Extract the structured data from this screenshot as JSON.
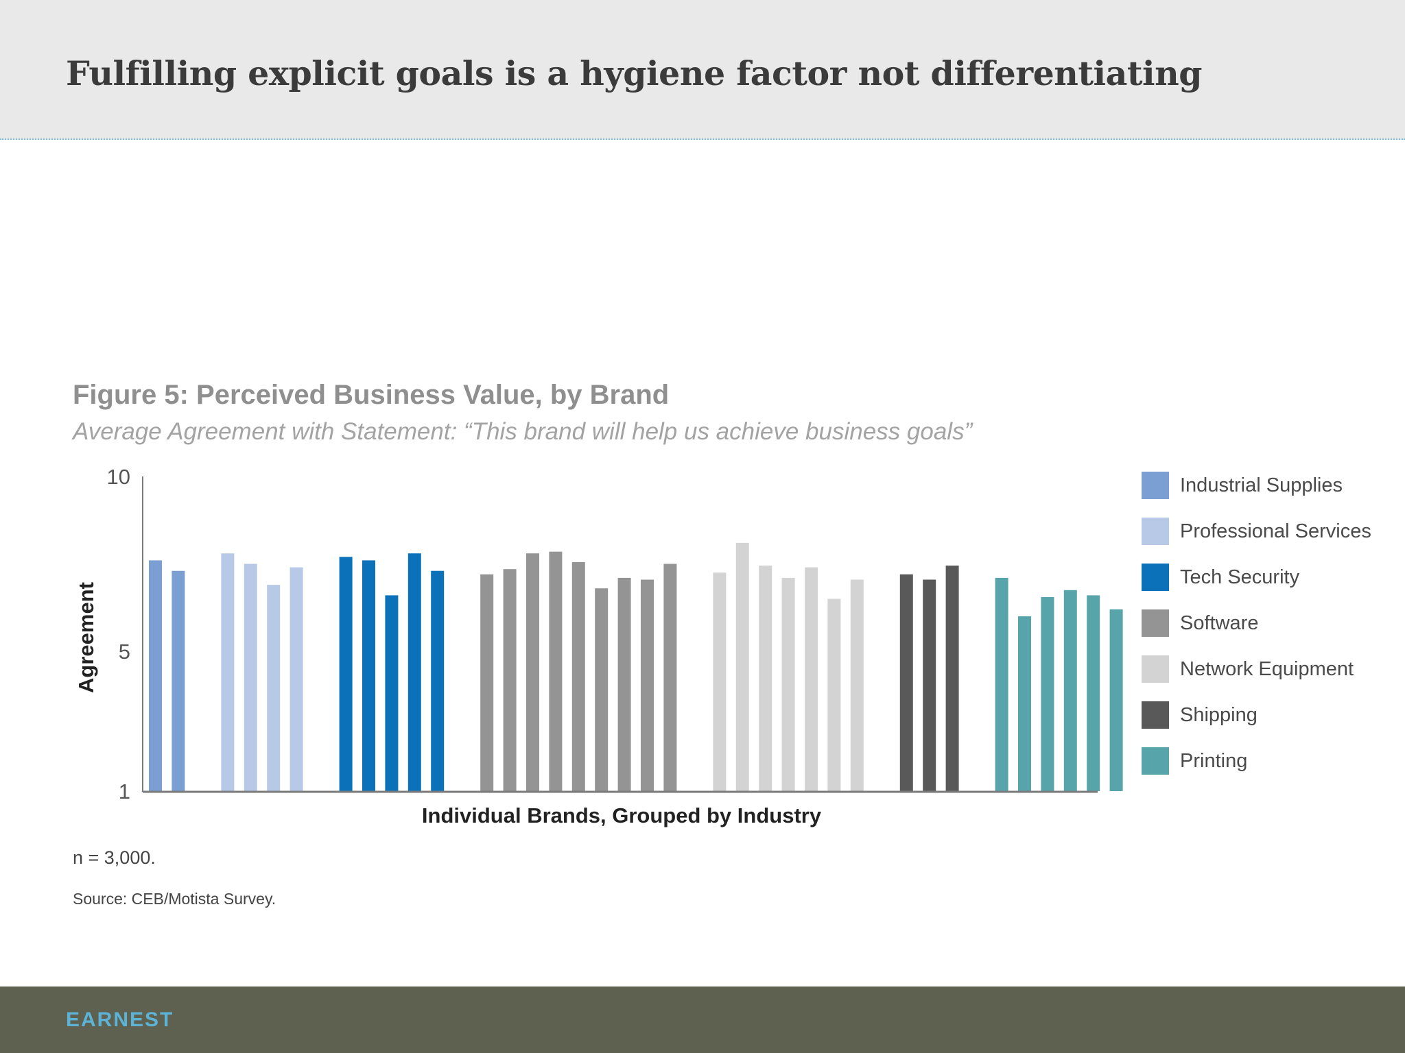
{
  "slide": {
    "title": "Fulfilling explicit goals is a hygiene factor not differentiating"
  },
  "footer": {
    "logo_text": "EARNEST"
  },
  "notes": {
    "n": "n = 3,000.",
    "source": "Source: CEB/Motista Survey."
  },
  "chart_data": {
    "type": "bar",
    "title": "Figure 5: Perceived Business Value, by Brand",
    "subtitle": "Average Agreement with Statement: “This brand will help us achieve business goals”",
    "xlabel": "Individual Brands, Grouped by Industry",
    "ylabel": "Agreement",
    "ylim": [
      1,
      10
    ],
    "yticks": [
      "10",
      "5",
      "1"
    ],
    "ytick_values": [
      10,
      5,
      1
    ],
    "grid": false,
    "legend_position": "right",
    "series": [
      {
        "name": "Industrial Supplies",
        "color": "#7b9fd2",
        "values": [
          7.6,
          7.3
        ]
      },
      {
        "name": "Professional Services",
        "color": "#b8c9e8",
        "values": [
          7.8,
          7.5,
          6.9,
          7.4
        ]
      },
      {
        "name": "Tech Security",
        "color": "#0b72b9",
        "values": [
          7.7,
          7.6,
          6.6,
          7.8,
          7.3
        ]
      },
      {
        "name": "Software",
        "color": "#949494",
        "values": [
          7.2,
          7.35,
          7.8,
          7.85,
          7.55,
          6.8,
          7.1,
          7.05,
          7.5
        ]
      },
      {
        "name": "Network Equipment",
        "color": "#d3d3d3",
        "values": [
          7.25,
          8.1,
          7.45,
          7.1,
          7.4,
          6.5,
          7.05
        ]
      },
      {
        "name": "Shipping",
        "color": "#595959",
        "values": [
          7.2,
          7.05,
          7.45
        ]
      },
      {
        "name": "Printing",
        "color": "#58a4ab",
        "values": [
          7.1,
          6.0,
          6.55,
          6.75,
          6.6,
          6.2
        ]
      }
    ]
  }
}
